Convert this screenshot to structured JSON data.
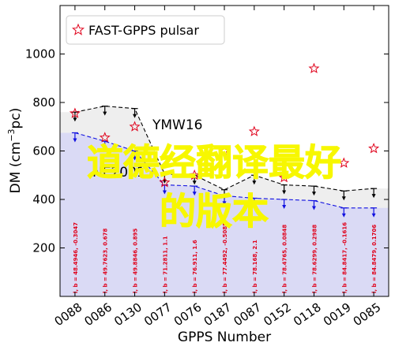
{
  "chart_data": {
    "type": "scatter",
    "xlabel": "GPPS Number",
    "ylabel": "DM (cm⁻³pc)",
    "ylabel_parts": {
      "main": "DM (cm",
      "sup": "−3",
      "end": "pc)"
    },
    "ylim": [
      0,
      1200
    ],
    "yticks": [
      200,
      400,
      600,
      800,
      1000
    ],
    "categories": [
      "0088",
      "0086",
      "0130",
      "0077",
      "0076",
      "0187",
      "0087",
      "0152",
      "0118",
      "0019",
      "0085"
    ],
    "series": [
      {
        "name": "FAST-GPPS pulsar",
        "marker": "star",
        "color": "#e0001a",
        "values": [
          755,
          655,
          700,
          470,
          500,
          600,
          680,
          490,
          940,
          550,
          610
        ]
      }
    ],
    "upper_limit_black": [
      760,
      785,
      775,
      505,
      500,
      440,
      500,
      460,
      455,
      435,
      445
    ],
    "upper_limit_blue": [
      675,
      640,
      600,
      460,
      455,
      415,
      405,
      400,
      395,
      365,
      365
    ],
    "lb_labels": [
      "l, b = 48.4946, -0.3047",
      "l, b = 49.7623, 0.678",
      "l, b = 49.8846, 0.895",
      "l, b = 71.2811, 1.1",
      "l, b = 76.911, 1.6",
      "l, b = 77.4492, -0.5085",
      "l, b = 78.168, 2.1",
      "l, b = 78.4765, 0.0848",
      "l, b = 78.6299, 0.2988",
      "l, b = 84.8417, -0.1616",
      "l, b = 84.8479, 0.1706"
    ],
    "model_labels": [
      "YMW16",
      "NE2001"
    ],
    "legend": {
      "label": "FAST-GPPS pulsar",
      "position": "top-left"
    },
    "grid": false
  },
  "overlay": {
    "line1": "道德经翻译最好",
    "line2": "的版本"
  },
  "colors": {
    "star": "#e0001a",
    "black_line": "#000000",
    "blue_line": "#1010e0",
    "black_fill": "#eeeeee",
    "blue_fill": "#dadaf5",
    "overlay_text": "#f7f700"
  }
}
